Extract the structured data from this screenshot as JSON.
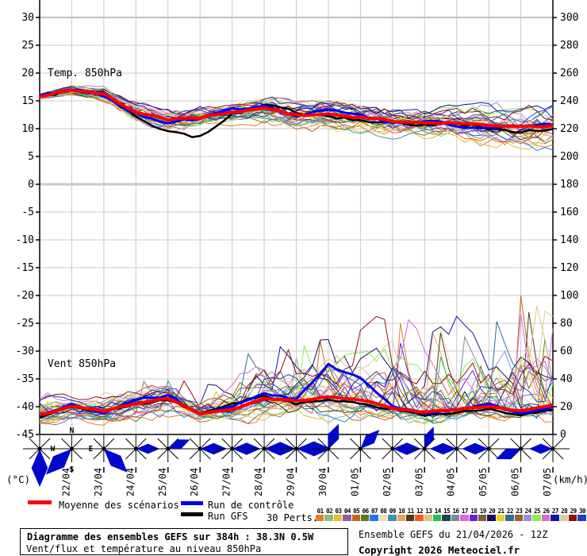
{
  "axes": {
    "left_unit": "(°C)",
    "right_unit": "(km/h)",
    "left_ticks": [
      30,
      25,
      20,
      15,
      10,
      5,
      0,
      -5,
      -10,
      -15,
      -20,
      -25,
      -30,
      -35,
      -40,
      -45
    ],
    "right_ticks": [
      300,
      280,
      260,
      240,
      220,
      200,
      180,
      160,
      140,
      120,
      100,
      80,
      60,
      40,
      20,
      0
    ],
    "dates": [
      "22/04",
      "23/04",
      "24/04",
      "25/04",
      "26/04",
      "27/04",
      "28/04",
      "29/04",
      "30/04",
      "01/05",
      "02/05",
      "03/05",
      "04/05",
      "05/05",
      "06/05",
      "07/05"
    ]
  },
  "chart_data": {
    "type": "line",
    "title": "Diagramme des ensembles GEFS sur 384h : 38.3N 0.5W",
    "subtitle": "Vent/flux et température au niveau 850hPa",
    "x_days": 16,
    "colors": {
      "mean": "#ff0000",
      "control": "#0000ee",
      "gfs": "#000000",
      "grid": "#c9c9c9",
      "axis": "#000000",
      "rose": "#0008cc"
    },
    "panels": [
      {
        "id": "temp",
        "label": "Temp. 850hPa",
        "unit": "°C",
        "axis": "left",
        "ylim": [
          -45,
          30
        ],
        "mean": [
          15.8,
          17.0,
          16.2,
          13.0,
          11.6,
          12.0,
          13.0,
          13.7,
          12.4,
          12.6,
          12.0,
          11.4,
          11.0,
          11.0,
          10.6,
          10.3,
          10.6
        ],
        "control": [
          15.8,
          17.2,
          16.0,
          12.5,
          11.0,
          12.0,
          13.5,
          14.0,
          12.0,
          13.5,
          12.5,
          11.0,
          11.5,
          10.5,
          10.0,
          10.5,
          11.0
        ],
        "gfs": [
          15.8,
          17.0,
          16.5,
          12.0,
          9.5,
          8.5,
          12.5,
          14.5,
          13.0,
          12.0,
          11.5,
          11.0,
          10.5,
          11.0,
          10.0,
          9.5,
          10.0
        ],
        "env_min": [
          15.0,
          15.5,
          14.5,
          10.5,
          8.5,
          9.0,
          10.0,
          10.0,
          9.0,
          8.5,
          8.0,
          7.0,
          6.5,
          6.0,
          5.5,
          5.0,
          4.5
        ],
        "env_max": [
          16.5,
          18.5,
          18.0,
          15.5,
          14.5,
          15.0,
          15.5,
          17.5,
          16.0,
          16.5,
          16.0,
          15.5,
          15.0,
          15.5,
          16.0,
          16.5,
          17.5
        ]
      },
      {
        "id": "wind",
        "label": "Vent 850hPa",
        "unit": "km/h",
        "axis": "right",
        "ylim": [
          0,
          300
        ],
        "mean": [
          14,
          20,
          17,
          22,
          26,
          15,
          18,
          26,
          24,
          27,
          25,
          19,
          16,
          18,
          20,
          17,
          21
        ],
        "control": [
          14,
          22,
          15,
          25,
          28,
          14,
          20,
          30,
          25,
          50,
          40,
          20,
          15,
          18,
          22,
          15,
          20
        ],
        "gfs": [
          12,
          20,
          16,
          22,
          25,
          15,
          22,
          28,
          22,
          25,
          22,
          18,
          14,
          16,
          18,
          14,
          18
        ],
        "env_min": [
          5,
          6,
          5,
          4,
          6,
          5,
          5,
          6,
          5,
          4,
          5,
          5,
          4,
          6,
          5,
          5,
          6
        ],
        "env_max": [
          38,
          30,
          30,
          38,
          45,
          32,
          48,
          68,
          62,
          70,
          75,
          95,
          70,
          85,
          75,
          100,
          85
        ]
      }
    ],
    "wind_roses": [
      {
        "dir": "S",
        "len": 48
      },
      {
        "dir": "SW",
        "len": 46
      },
      {
        "dir": "SE",
        "len": 42
      },
      {
        "dir": "E",
        "len": 30
      },
      {
        "dir": "ENE",
        "len": 30
      },
      {
        "dir": "E",
        "len": 34
      },
      {
        "dir": "E",
        "len": 36
      },
      {
        "dir": "E",
        "len": 40
      },
      {
        "dir": "E",
        "len": 44
      },
      {
        "dir": "NNE",
        "len": 34
      },
      {
        "dir": "NE",
        "len": 34
      },
      {
        "dir": "E",
        "len": 36
      },
      {
        "dir": "NNE",
        "len": 30
      },
      {
        "dir": "W",
        "len": 34
      },
      {
        "dir": "W",
        "len": 34
      },
      {
        "dir": "WSW",
        "len": 34
      },
      {
        "dir": "W",
        "len": 30
      }
    ],
    "compass_labels": {
      "n": "N",
      "e": "E",
      "s": "S",
      "w": "W"
    }
  },
  "legend": {
    "mean_label": "Moyenne des scénarios",
    "control_label": "Run de contrôle",
    "gfs_label": "Run GFS",
    "perts_label": "30 Perts.",
    "pert_numbers": [
      "01",
      "02",
      "03",
      "04",
      "05",
      "06",
      "07",
      "08",
      "09",
      "10",
      "11",
      "12",
      "13",
      "14",
      "15",
      "16",
      "17",
      "18",
      "19",
      "20",
      "21",
      "22",
      "23",
      "24",
      "25",
      "26",
      "27",
      "28",
      "29",
      "30"
    ],
    "pert_colors": [
      "#e87e28",
      "#8fbf78",
      "#e3c229",
      "#8a5fa8",
      "#c2671c",
      "#5a7a1e",
      "#2277ee",
      "#eadfb8",
      "#3b93b0",
      "#eba35c",
      "#4f3a17",
      "#f25b1d",
      "#d6c583",
      "#20c050",
      "#22404e",
      "#7a8a96",
      "#dd66dd",
      "#6a1fd8",
      "#7a6228",
      "#1a0a66",
      "#e8d414",
      "#2a6e9e",
      "#9a6224",
      "#9a8fd8",
      "#8cf04a",
      "#d46cc8",
      "#14149e",
      "#dccb9e",
      "#8e0e12",
      "#1c3fbf"
    ]
  },
  "footer": {
    "box_title": "Diagramme des ensembles GEFS sur 384h : 38.3N 0.5W",
    "box_subtitle": "Vent/flux et température au niveau 850hPa",
    "run_info": "Ensemble GEFS du 21/04/2026 - 12Z",
    "copyright": "Copyright 2026 Meteociel.fr"
  }
}
